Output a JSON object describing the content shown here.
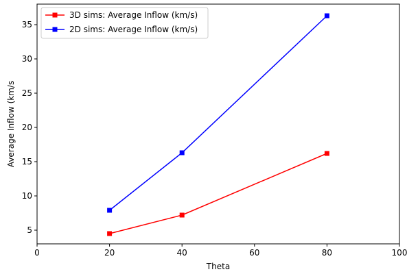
{
  "chart_data": {
    "type": "line",
    "xlabel": "Theta",
    "ylabel": "Average Inflow (km/s",
    "xlim": [
      0,
      100
    ],
    "ylim": [
      3,
      38
    ],
    "xticks": [
      0,
      20,
      40,
      60,
      80,
      100
    ],
    "yticks": [
      5,
      10,
      15,
      20,
      25,
      30,
      35
    ],
    "grid": false,
    "legend_position": "top-left",
    "series": [
      {
        "name": "3D sims: Average Inflow (km/s)",
        "color": "#ff0000",
        "marker": "square",
        "x": [
          20,
          40,
          80
        ],
        "y": [
          4.5,
          7.2,
          16.2
        ]
      },
      {
        "name": "2D sims: Average Inflow (km/s)",
        "color": "#0000ff",
        "marker": "square",
        "x": [
          20,
          40,
          80
        ],
        "y": [
          7.9,
          16.3,
          36.3
        ]
      }
    ]
  }
}
